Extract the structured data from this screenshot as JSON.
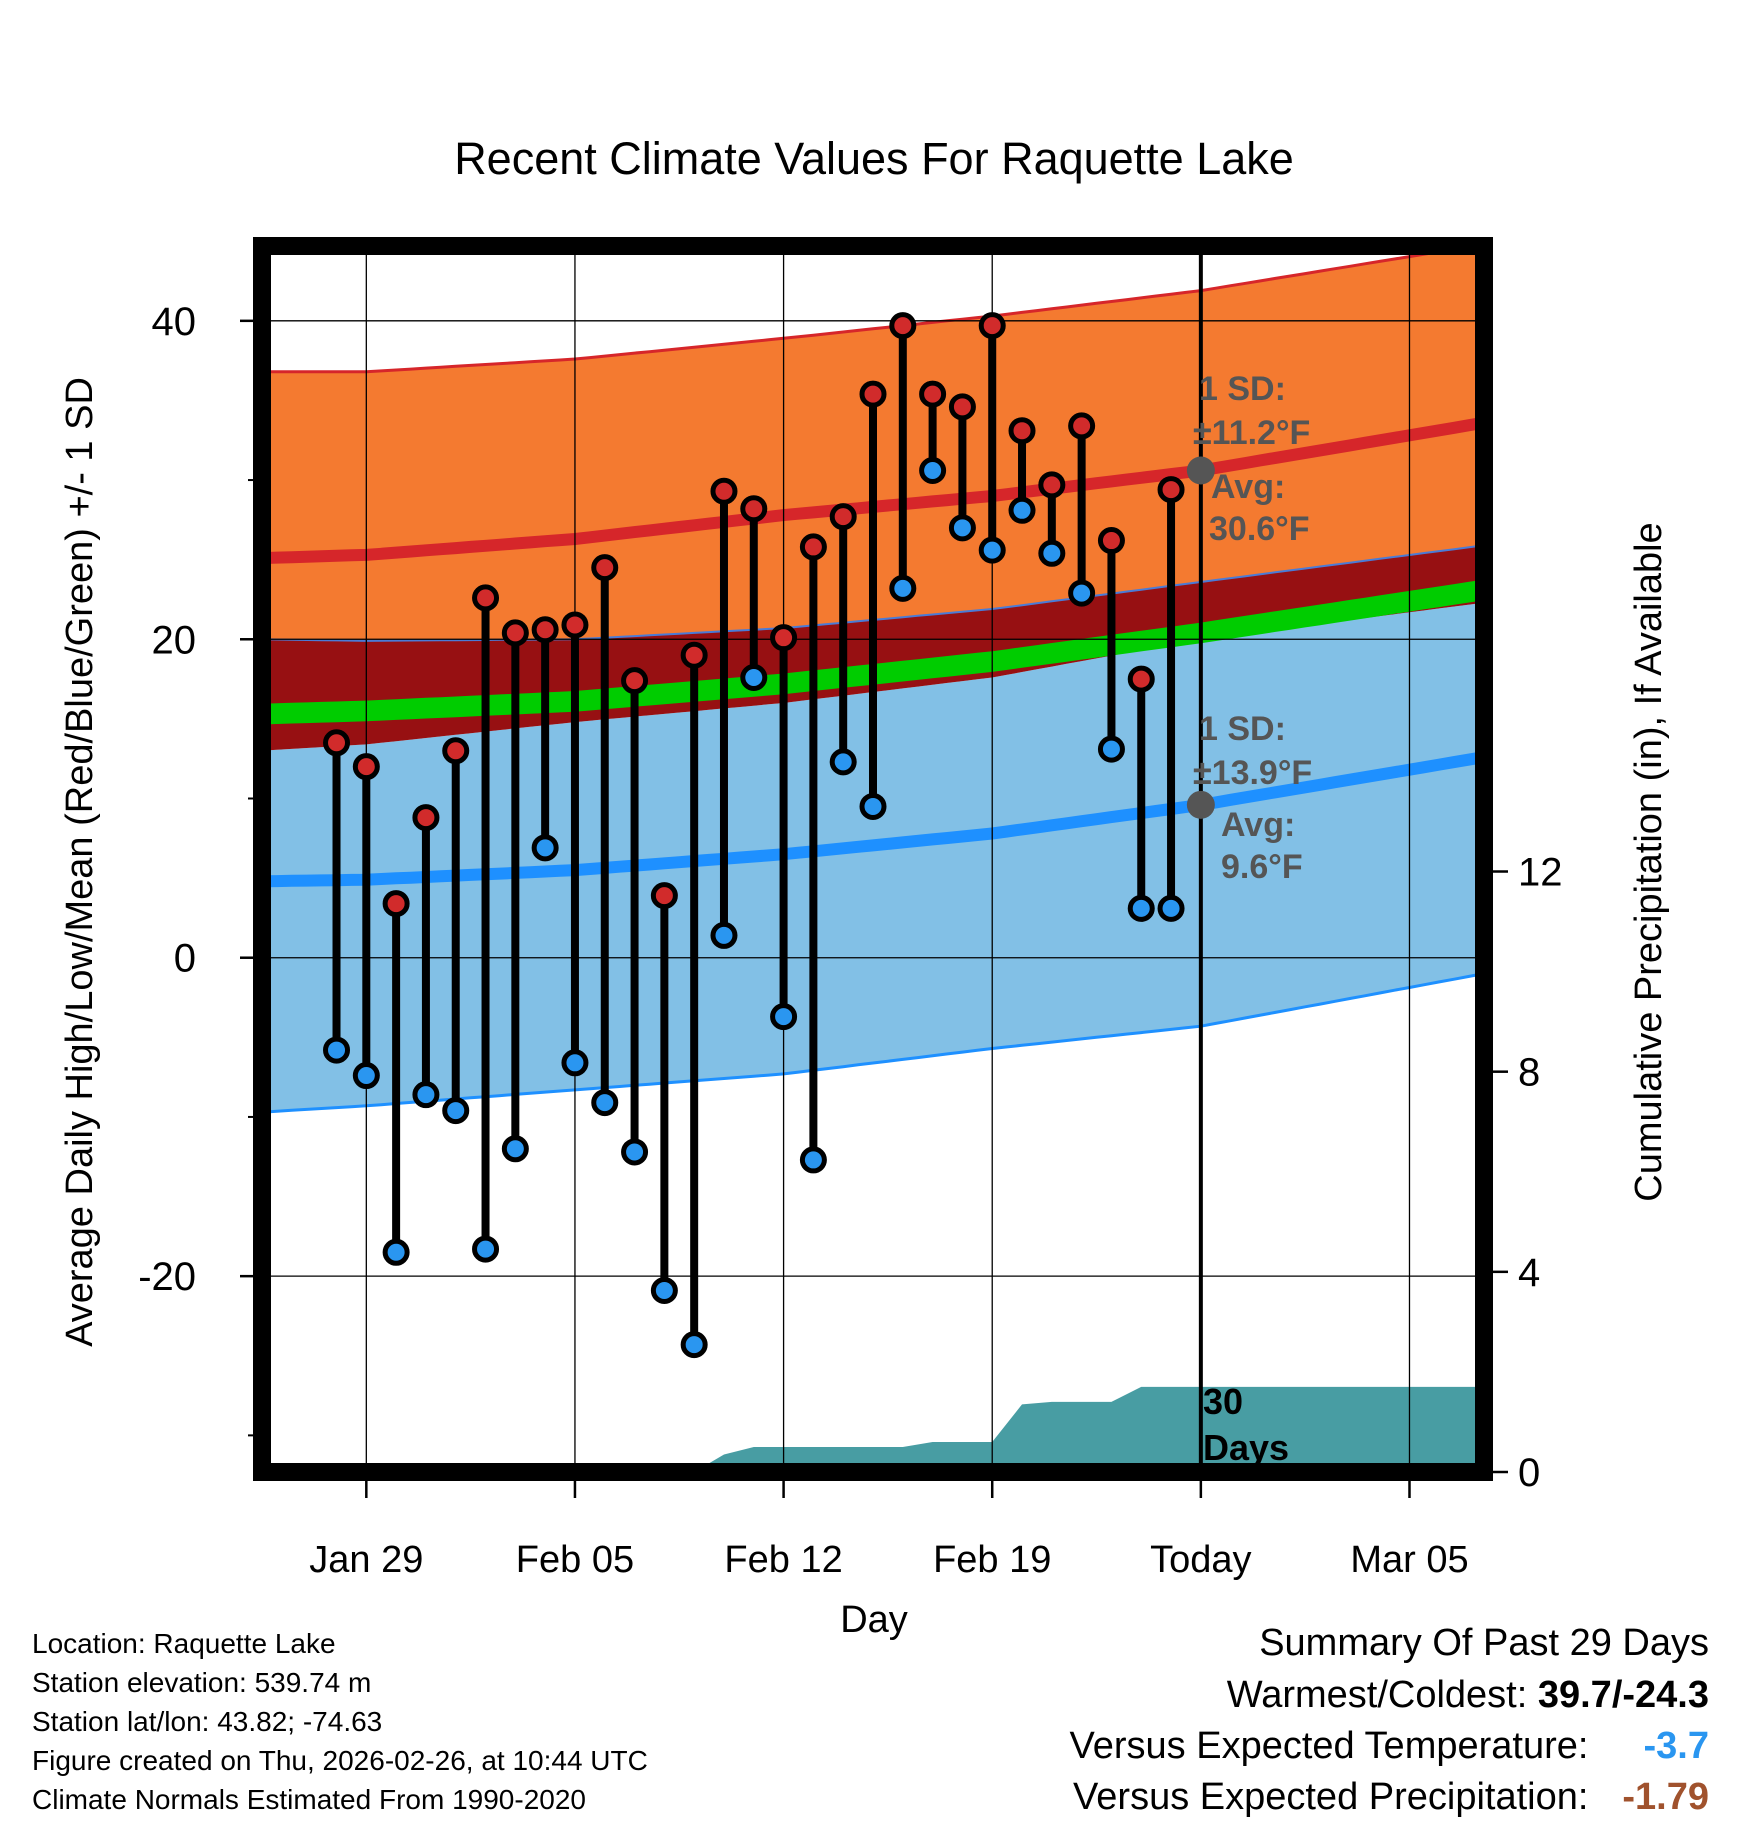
{
  "chart_data": {
    "type": "line",
    "title": "Recent Climate Values For Raquette Lake",
    "xlabel": "Day",
    "ylabel": "Average Daily High/Low/Mean (Red/Blue/Green) +/- 1 SD",
    "y2label": "Cumulative Precipitation (in), If Available",
    "x_tick_labels": [
      "Jan 29",
      "Feb 05",
      "Feb 12",
      "Feb 19",
      "Today",
      "Mar 05"
    ],
    "x_tick_days": [
      -28,
      -21,
      -14,
      -7,
      0,
      7
    ],
    "x_range_days": [
      -31.5,
      9.5
    ],
    "y_ticks": [
      40,
      20,
      0,
      -20
    ],
    "y_range": [
      -32.3,
      44.7
    ],
    "y2_ticks": [
      12,
      8,
      4,
      0
    ],
    "y2_range": [
      0,
      24.5
    ],
    "normals_days": [
      -31.5,
      -28,
      -21,
      -14,
      -7,
      0,
      9.5
    ],
    "normal_high_avg": [
      25.1,
      25.3,
      26.3,
      27.8,
      29.0,
      30.6,
      33.6
    ],
    "normal_high_upper": [
      36.8,
      36.8,
      37.6,
      38.9,
      40.3,
      41.9,
      44.8
    ],
    "normal_high_lower": [
      20.0,
      19.9,
      20.0,
      20.7,
      21.9,
      23.6,
      25.9
    ],
    "normal_mean": [
      15.3,
      15.5,
      16.1,
      17.2,
      18.6,
      20.4,
      23.1
    ],
    "normal_low_avg": [
      4.8,
      4.9,
      5.5,
      6.5,
      7.8,
      9.6,
      12.6
    ],
    "normal_low_upper": [
      13.0,
      13.4,
      14.8,
      16.0,
      17.6,
      20.0,
      22.3
    ],
    "normal_low_lower": [
      -9.7,
      -9.3,
      -8.3,
      -7.3,
      -5.7,
      -4.3,
      -1.0
    ],
    "series": [
      {
        "name": "Daily High",
        "days": [
          -29,
          -28,
          -27,
          -26,
          -25,
          -24,
          -23,
          -22,
          -21,
          -20,
          -19,
          -18,
          -17,
          -16,
          -15,
          -14,
          -13,
          -12,
          -11,
          -10,
          -9,
          -8,
          -7,
          -6,
          -5,
          -4,
          -3,
          -2,
          -1
        ],
        "values": [
          13.5,
          12.0,
          3.4,
          8.8,
          13.0,
          22.6,
          20.4,
          20.6,
          20.9,
          24.5,
          17.4,
          3.9,
          19.0,
          29.3,
          28.2,
          20.1,
          25.8,
          27.7,
          35.4,
          39.7,
          35.4,
          34.6,
          39.7,
          33.1,
          29.7,
          33.4,
          26.2,
          17.5,
          29.4
        ]
      },
      {
        "name": "Daily Low",
        "days": [
          -29,
          -28,
          -27,
          -26,
          -25,
          -24,
          -23,
          -22,
          -21,
          -20,
          -19,
          -18,
          -17,
          -16,
          -15,
          -14,
          -13,
          -12,
          -11,
          -10,
          -9,
          -8,
          -7,
          -6,
          -5,
          -4,
          -3,
          -2,
          -1
        ],
        "values": [
          -5.8,
          -7.4,
          -18.5,
          -8.6,
          -9.6,
          -18.3,
          -12.0,
          6.9,
          -6.6,
          -9.1,
          -12.2,
          -20.9,
          -24.3,
          1.4,
          17.6,
          -3.7,
          -12.7,
          12.3,
          9.5,
          23.2,
          30.6,
          27.0,
          25.6,
          28.1,
          25.4,
          22.9,
          13.1,
          3.1,
          3.1
        ]
      }
    ],
    "precip_days": [
      -31.5,
      -18,
      -17,
      -16,
      -15,
      -11,
      -10,
      -9,
      -7,
      -6,
      -5,
      -4,
      -3,
      -2,
      -1,
      9.5
    ],
    "precip_cumulative": [
      0,
      0,
      0,
      0.35,
      0.5,
      0.5,
      0.5,
      0.6,
      0.6,
      1.35,
      1.4,
      1.4,
      1.4,
      1.7,
      1.7,
      1.7
    ],
    "sd_high_label": "1 SD:",
    "sd_high_value": "±11.2°F",
    "avg_high_label": "Avg:",
    "avg_high_value": "30.6°F",
    "sd_low_label": "1 SD:",
    "sd_low_value": "±13.9°F",
    "avg_low_label": "Avg:",
    "avg_low_value": "9.6°F",
    "window_label_num": "30",
    "window_label_text": "Days",
    "colors": {
      "high_band": "#f47a30",
      "high_line": "#d6262a",
      "overlap": "#971012",
      "mean": "#00cc00",
      "low_band": "#82c0e6",
      "low_line": "#1e90ff",
      "precip": "#489da3",
      "annot": "#555555",
      "high_dot": "#d12b2b",
      "low_dot": "#2a96f0"
    }
  },
  "footer": {
    "location": "Location: Raquette Lake",
    "elevation": "Station elevation: 539.74 m",
    "latlon": "Station lat/lon: 43.82; -74.63",
    "created": "Figure created on Thu, 2026-02-26, at 10:44 UTC",
    "normals": "Climate Normals Estimated From 1990-2020"
  },
  "summary": {
    "title": "Summary Of Past 29 Days",
    "warm_cold_label": "Warmest/Coldest:",
    "warm_cold_value": "39.7/-24.3",
    "temp_label": "Versus Expected Temperature:",
    "temp_value": "-3.7",
    "temp_color": "#2a96f0",
    "precip_label": "Versus Expected Precipitation:",
    "precip_value": "-1.79",
    "precip_color": "#a0522d"
  }
}
